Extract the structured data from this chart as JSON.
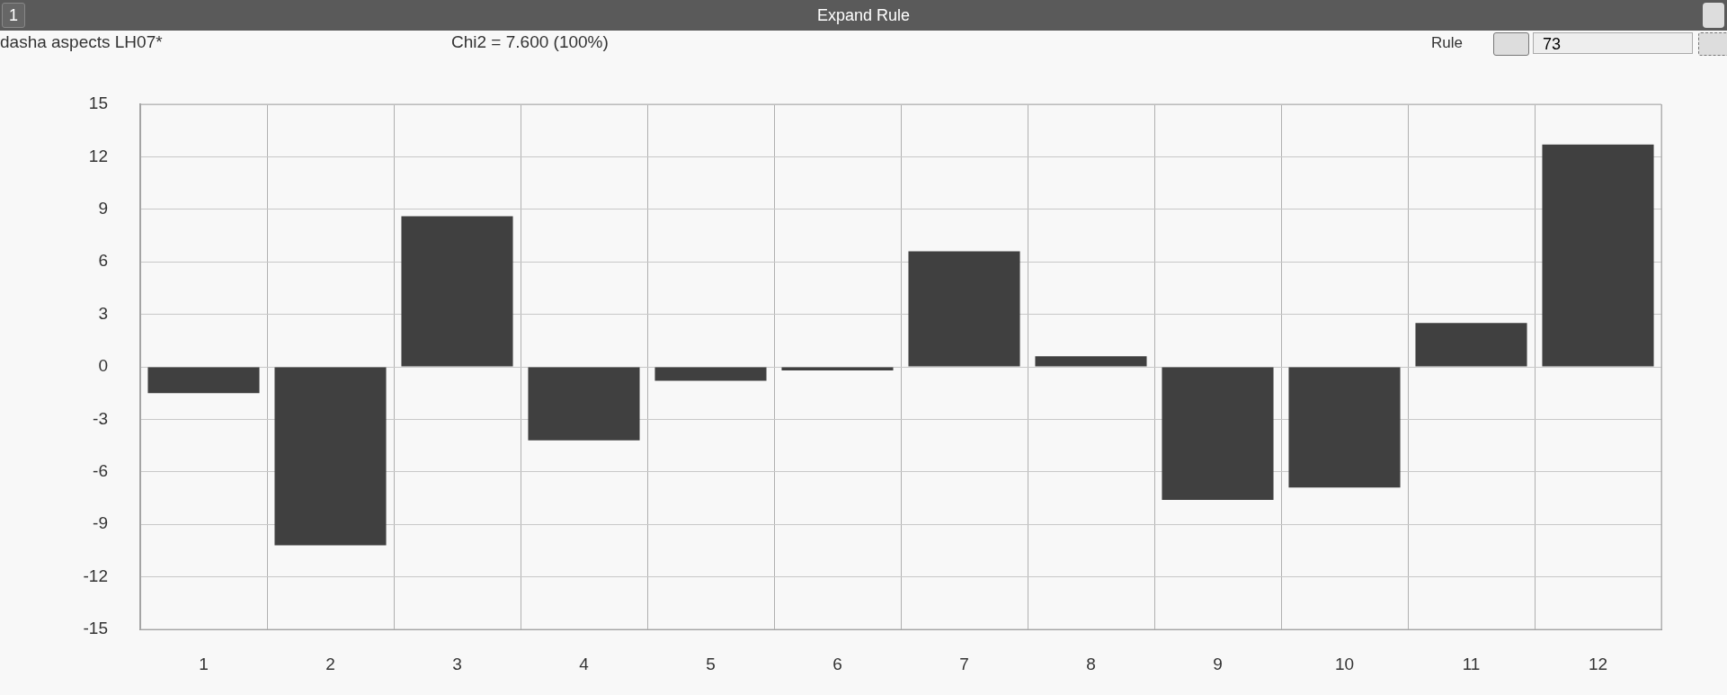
{
  "chart_data": {
    "type": "bar",
    "title": "Expand Rule",
    "subtitle": "dasha aspects LH07*",
    "annotations": [
      "Chi2 = 7.600 (100%)",
      "1",
      "Rule",
      "73"
    ],
    "categories": [
      "1",
      "2",
      "3",
      "4",
      "5",
      "6",
      "7",
      "8",
      "9",
      "10",
      "11",
      "12"
    ],
    "values": [
      -1.5,
      -10.2,
      8.6,
      -4.2,
      -0.8,
      -0.2,
      6.6,
      0.6,
      -7.6,
      -6.9,
      2.5,
      12.7
    ],
    "color": "#404040",
    "ylim": [
      -15,
      15
    ],
    "yticks": [
      -15,
      -12,
      -9,
      -6,
      -3,
      0,
      3,
      6,
      9,
      12,
      15
    ],
    "grid": true
  }
}
